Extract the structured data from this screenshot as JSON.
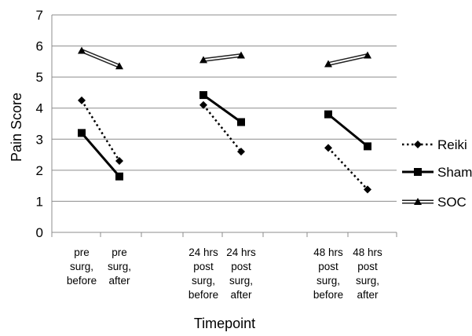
{
  "chart_data": {
    "type": "line",
    "title": "",
    "xlabel": "Timepoint",
    "ylabel": "Pain Score",
    "ylim": [
      0,
      7
    ],
    "yticks": [
      0,
      1,
      2,
      3,
      4,
      5,
      6,
      7
    ],
    "grid": "horizontal",
    "legend_position": "right",
    "categories": [
      [
        "pre",
        "surg,",
        "before"
      ],
      [
        "pre",
        "surg,",
        "after"
      ],
      [
        "24 hrs",
        "post",
        "surg,",
        "before"
      ],
      [
        "24 hrs",
        "post",
        "surg,",
        "after"
      ],
      [
        "48 hrs",
        "post",
        "surg,",
        "before"
      ],
      [
        "48 hrs",
        "post",
        "surg,",
        "after"
      ]
    ],
    "series": [
      {
        "name": "Reiki",
        "style": "dotted",
        "marker": "diamond",
        "values": [
          4.25,
          2.3,
          4.1,
          2.6,
          2.72,
          1.38
        ]
      },
      {
        "name": "Sham",
        "style": "solid",
        "marker": "square",
        "values": [
          3.2,
          1.8,
          4.42,
          3.55,
          3.8,
          2.77
        ]
      },
      {
        "name": "SOC",
        "style": "double",
        "marker": "triangle",
        "values": [
          5.85,
          5.35,
          5.55,
          5.7,
          5.42,
          5.7
        ]
      }
    ]
  }
}
